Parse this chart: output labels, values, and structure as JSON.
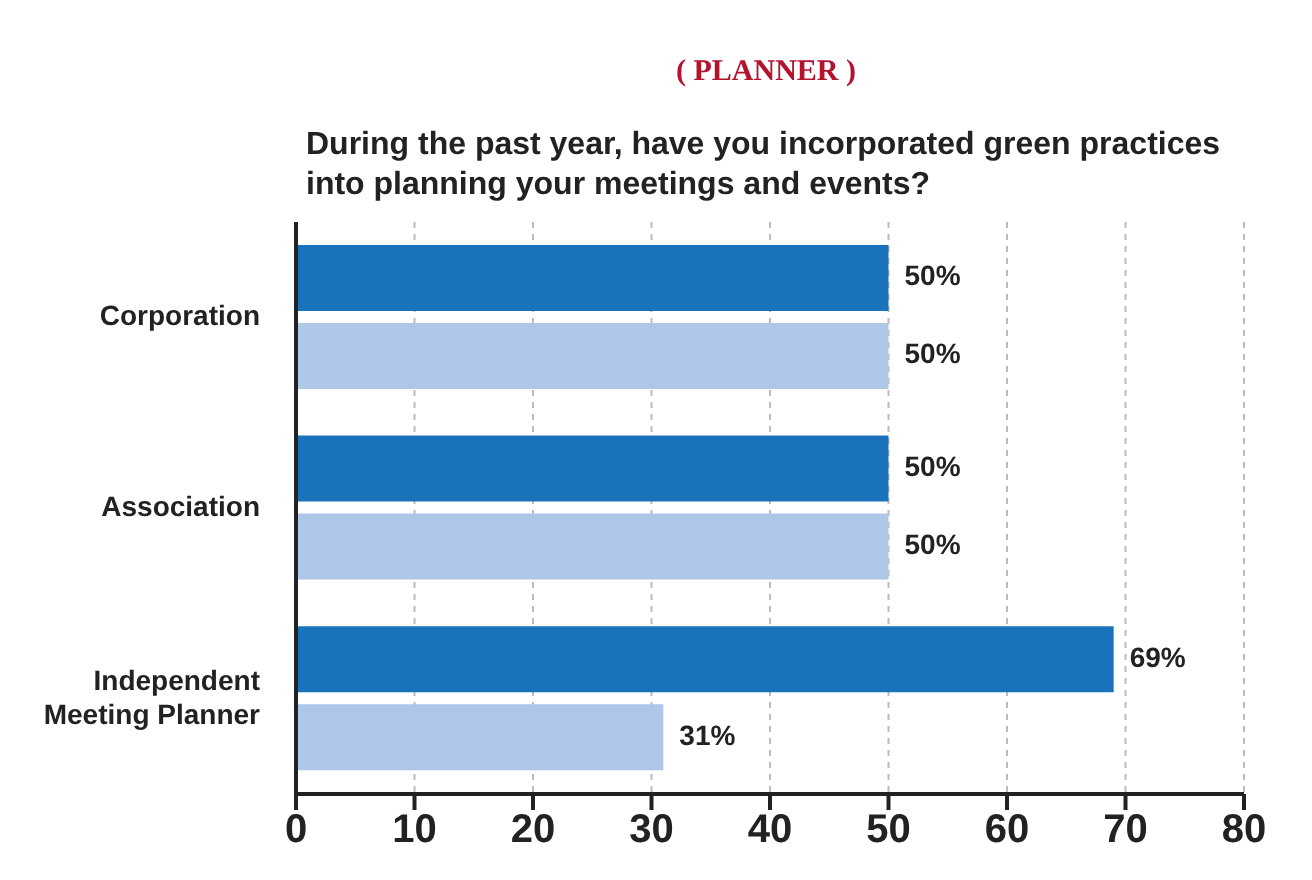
{
  "chart_data": {
    "type": "bar",
    "orientation": "horizontal",
    "title": "( PLANNER )",
    "subtitle": "During the past year, have you incorporated green practices into planning your meetings and events?",
    "categories": [
      "Corporation",
      "Association",
      "Independent Meeting Planner"
    ],
    "series": [
      {
        "color": "#1a72bb",
        "values": [
          50,
          50,
          69
        ],
        "value_labels": [
          "50%",
          "50%",
          "69%"
        ]
      },
      {
        "color": "#aec6e7",
        "values": [
          50,
          50,
          31
        ],
        "value_labels": [
          "50%",
          "50%",
          "31%"
        ]
      }
    ],
    "xlim": [
      0,
      80
    ],
    "xticks": [
      0,
      10,
      20,
      30,
      40,
      50,
      60,
      70,
      80
    ],
    "grid": "x",
    "legend": false
  }
}
